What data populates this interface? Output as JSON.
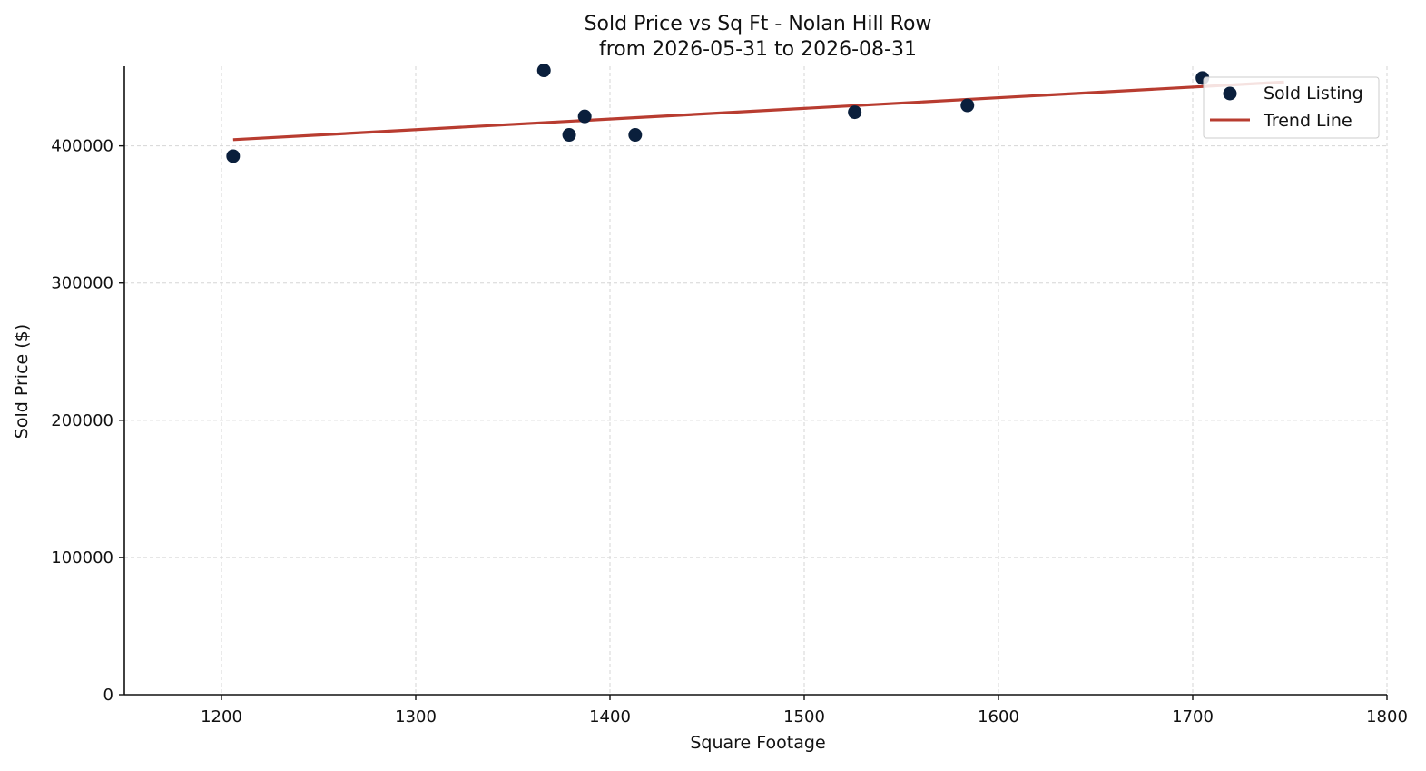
{
  "chart_data": {
    "type": "scatter",
    "title": "Sold Price vs Sq Ft - Nolan Hill Row",
    "subtitle": "from 2026-05-31 to 2026-08-31",
    "xlabel": "Square Footage",
    "ylabel": "Sold Price ($)",
    "xlim": [
      1150,
      1800
    ],
    "ylim": [
      0,
      458000
    ],
    "x_ticks": [
      1200,
      1300,
      1400,
      1500,
      1600,
      1700,
      1800
    ],
    "y_ticks": [
      0,
      100000,
      200000,
      300000,
      400000
    ],
    "grid": true,
    "legend_position": "top-right",
    "series": [
      {
        "name": "Sold Listing",
        "kind": "scatter",
        "color": "#0a1f3c",
        "points": [
          {
            "x": 1206,
            "y": 392500
          },
          {
            "x": 1366,
            "y": 455000
          },
          {
            "x": 1379,
            "y": 408000
          },
          {
            "x": 1387,
            "y": 421500
          },
          {
            "x": 1413,
            "y": 408000
          },
          {
            "x": 1526,
            "y": 424500
          },
          {
            "x": 1584,
            "y": 429500
          },
          {
            "x": 1705,
            "y": 449500
          }
        ]
      },
      {
        "name": "Trend Line",
        "kind": "line",
        "color": "#b83c30",
        "points": [
          {
            "x": 1206,
            "y": 404500
          },
          {
            "x": 1747,
            "y": 446500
          }
        ]
      }
    ]
  }
}
